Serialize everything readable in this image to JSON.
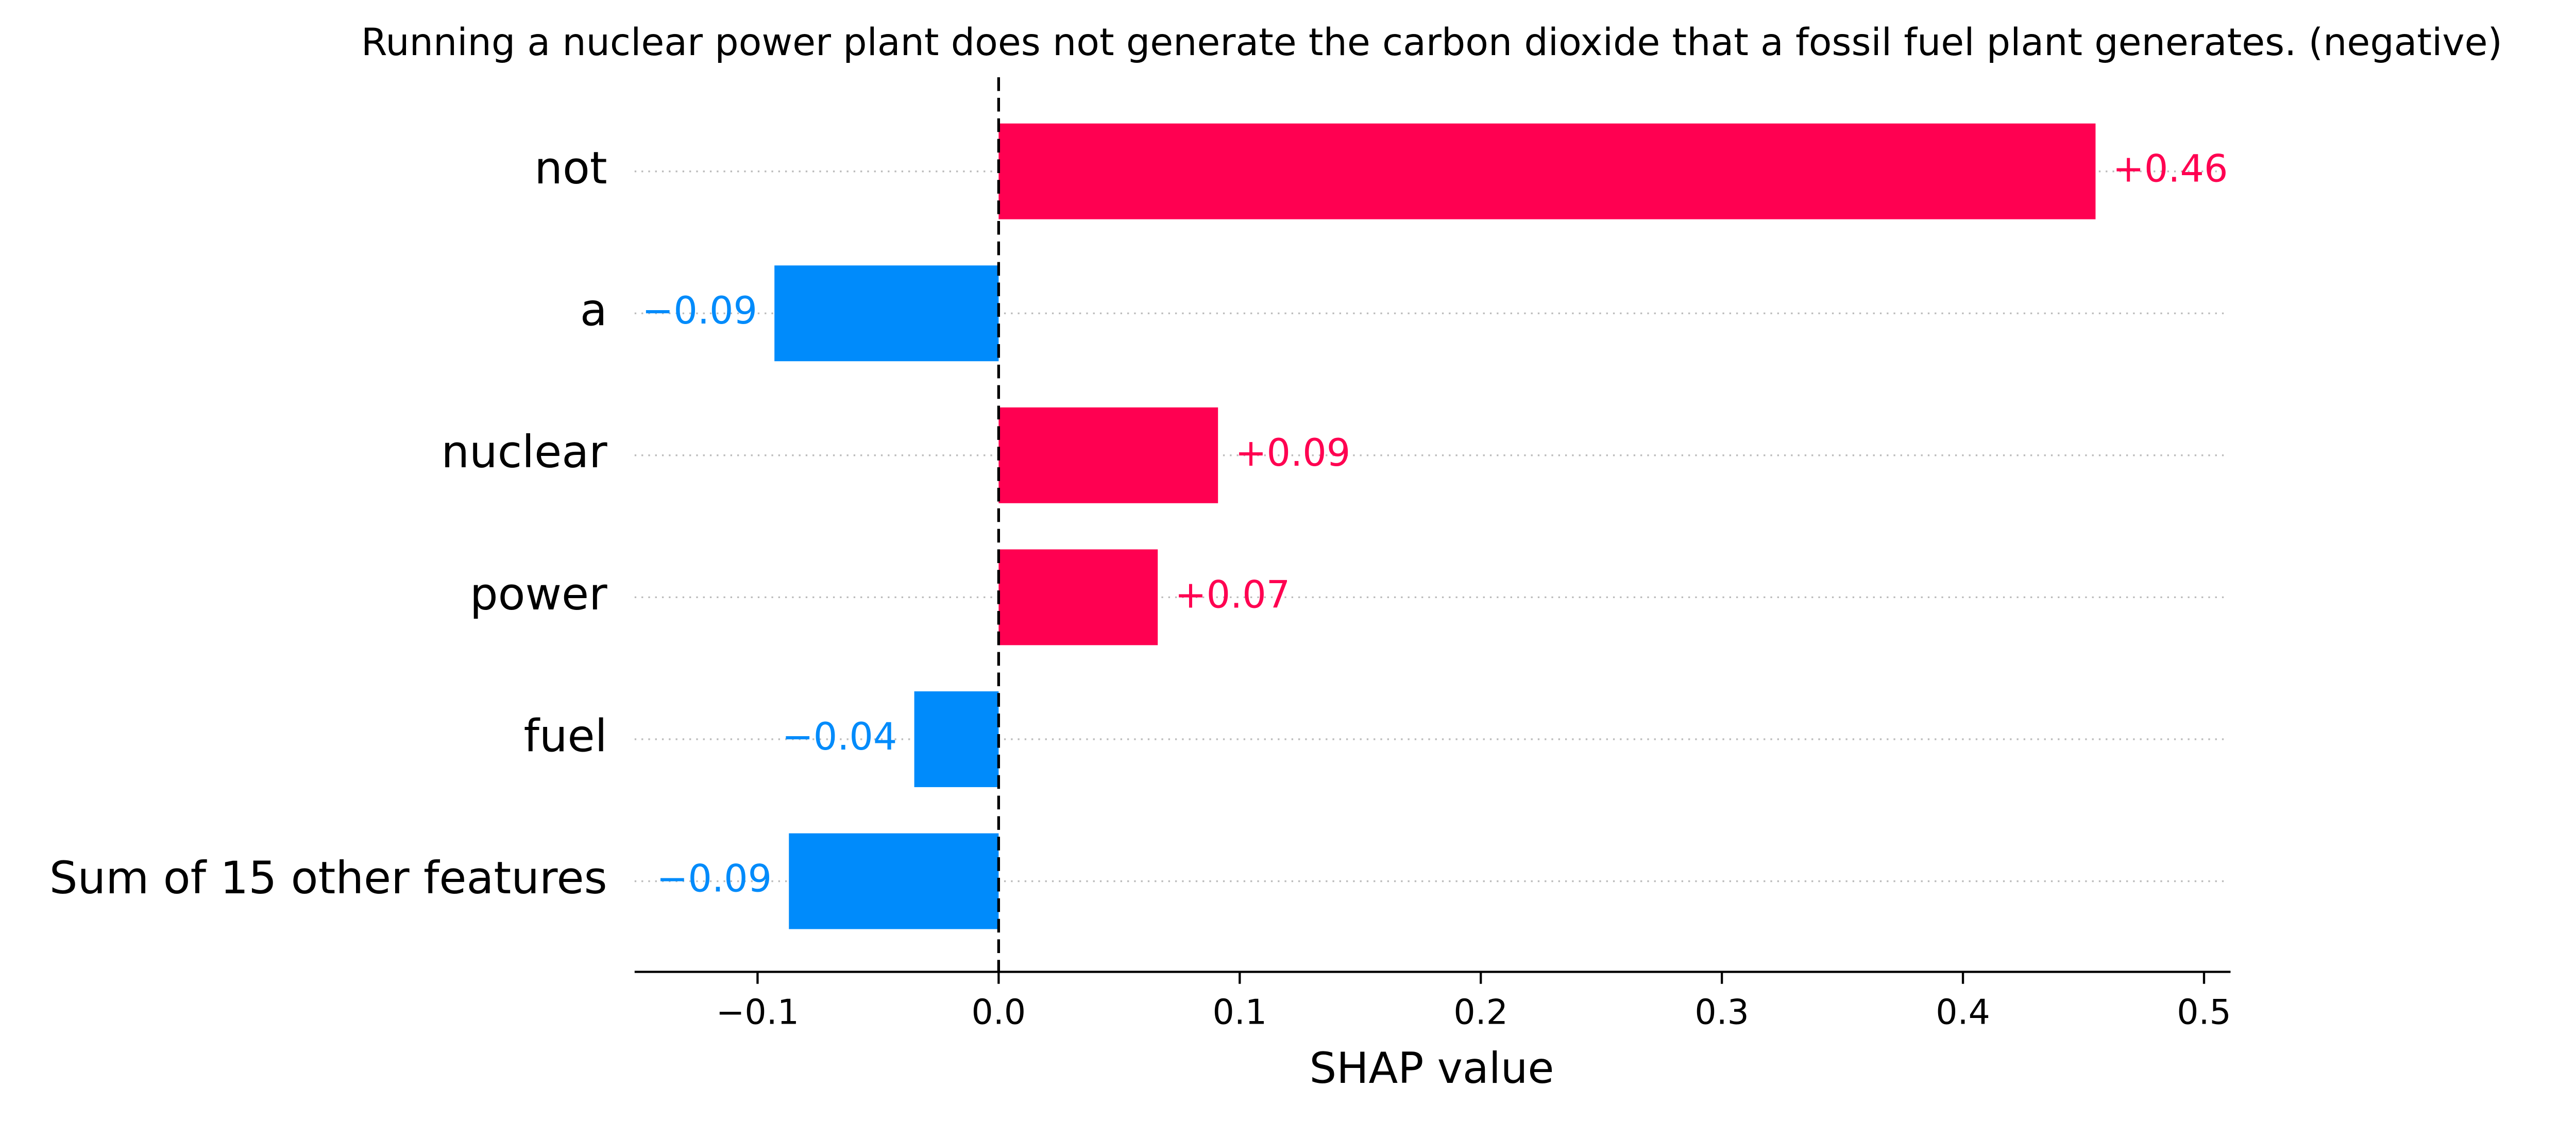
{
  "chart_data": {
    "type": "bar",
    "orientation": "horizontal",
    "title": "Running a nuclear power plant does not generate the carbon dioxide that a fossil fuel plant generates. (negative)",
    "categories": [
      "not",
      "a",
      "nuclear",
      "power",
      "fuel",
      "Sum of 15 other features"
    ],
    "values": [
      0.455,
      -0.093,
      0.091,
      0.066,
      -0.035,
      -0.087
    ],
    "value_labels": [
      "+0.46",
      "−0.09",
      "+0.09",
      "+0.07",
      "−0.04",
      "−0.09"
    ],
    "positive_color": "#ff0051",
    "negative_color": "#008bfb",
    "xlabel": "SHAP value",
    "xlim": [
      -0.151,
      0.511
    ],
    "xticks": [
      {
        "value": -0.1,
        "label": "−0.1"
      },
      {
        "value": 0,
        "label": "0.0"
      },
      0.1,
      0.2,
      0.3,
      0.4,
      0.5
    ]
  }
}
